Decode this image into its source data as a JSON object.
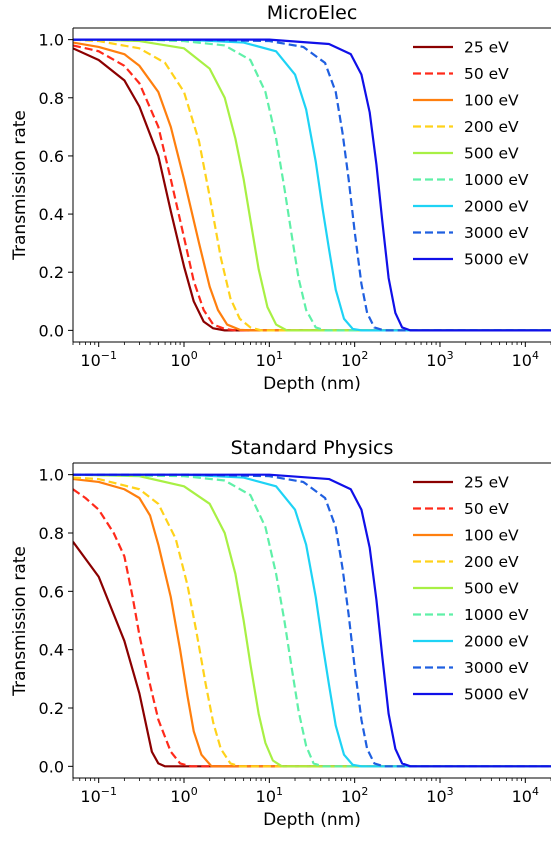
{
  "chart_data": [
    {
      "type": "line",
      "title": "MicroElec",
      "xlabel": "Depth (nm)",
      "ylabel": "Transmission rate",
      "x_scale": "log",
      "xlim": [
        0.05,
        20000
      ],
      "ylim": [
        -0.04,
        1.04
      ],
      "x_ticks": [
        {
          "value": 0.1,
          "base": "10",
          "exp": "−1"
        },
        {
          "value": 1,
          "base": "10",
          "exp": "0"
        },
        {
          "value": 10,
          "base": "10",
          "exp": "1"
        },
        {
          "value": 100,
          "base": "10",
          "exp": "2"
        },
        {
          "value": 1000,
          "base": "10",
          "exp": "3"
        },
        {
          "value": 10000,
          "base": "10",
          "exp": "4"
        }
      ],
      "y_ticks": [
        {
          "value": 0.0,
          "label": "0.0"
        },
        {
          "value": 0.2,
          "label": "0.2"
        },
        {
          "value": 0.4,
          "label": "0.4"
        },
        {
          "value": 0.6,
          "label": "0.6"
        },
        {
          "value": 0.8,
          "label": "0.8"
        },
        {
          "value": 1.0,
          "label": "1.0"
        }
      ],
      "grid": false,
      "legend_position": "top-right",
      "series": [
        {
          "name": "25 eV",
          "color": "#8b0000",
          "dashed": false,
          "x": [
            0.05,
            0.1,
            0.2,
            0.3,
            0.5,
            0.7,
            1,
            1.3,
            1.7,
            2.2,
            3,
            5,
            20000
          ],
          "y": [
            0.97,
            0.93,
            0.86,
            0.77,
            0.6,
            0.41,
            0.22,
            0.1,
            0.03,
            0.007,
            0.0,
            0.0,
            0.0
          ]
        },
        {
          "name": "50 eV",
          "color": "#ff2a1a",
          "dashed": true,
          "x": [
            0.05,
            0.1,
            0.2,
            0.3,
            0.5,
            0.7,
            1,
            1.3,
            1.7,
            2.2,
            3,
            4,
            5,
            20000
          ],
          "y": [
            0.98,
            0.96,
            0.91,
            0.85,
            0.7,
            0.52,
            0.32,
            0.17,
            0.07,
            0.02,
            0.005,
            0.0,
            0.0,
            0.0
          ]
        },
        {
          "name": "100 eV",
          "color": "#ff7f0e",
          "dashed": false,
          "x": [
            0.05,
            0.1,
            0.2,
            0.3,
            0.5,
            0.7,
            1,
            1.5,
            2,
            2.5,
            3.2,
            4.5,
            6,
            20000
          ],
          "y": [
            0.99,
            0.975,
            0.95,
            0.91,
            0.82,
            0.7,
            0.52,
            0.3,
            0.15,
            0.07,
            0.02,
            0.002,
            0.0,
            0.0
          ]
        },
        {
          "name": "200 eV",
          "color": "#ffd21a",
          "dashed": true,
          "x": [
            0.05,
            0.1,
            0.3,
            0.6,
            1,
            1.5,
            2,
            2.7,
            3.5,
            4.5,
            6,
            8,
            20000
          ],
          "y": [
            1.0,
            0.995,
            0.97,
            0.92,
            0.82,
            0.65,
            0.46,
            0.25,
            0.11,
            0.04,
            0.01,
            0.0,
            0.0
          ]
        },
        {
          "name": "500 eV",
          "color": "#a8f044",
          "dashed": false,
          "x": [
            0.05,
            0.1,
            0.3,
            1,
            2,
            3,
            4,
            5,
            6,
            7.5,
            9.5,
            12,
            16,
            20000
          ],
          "y": [
            1.0,
            1.0,
            0.995,
            0.97,
            0.9,
            0.8,
            0.66,
            0.52,
            0.38,
            0.21,
            0.08,
            0.02,
            0.0,
            0.0
          ]
        },
        {
          "name": "1000 eV",
          "color": "#5ff0a8",
          "dashed": true,
          "x": [
            0.05,
            0.3,
            1,
            3,
            6,
            9,
            12,
            15,
            18,
            22,
            27,
            35,
            45,
            20000
          ],
          "y": [
            1.0,
            1.0,
            0.995,
            0.98,
            0.93,
            0.82,
            0.66,
            0.49,
            0.34,
            0.18,
            0.07,
            0.01,
            0.0,
            0.0
          ]
        },
        {
          "name": "2000 eV",
          "color": "#1ed3f5",
          "dashed": false,
          "x": [
            0.05,
            1,
            5,
            12,
            20,
            27,
            35,
            42,
            50,
            60,
            75,
            95,
            120,
            20000
          ],
          "y": [
            1.0,
            1.0,
            0.99,
            0.96,
            0.88,
            0.76,
            0.58,
            0.42,
            0.28,
            0.14,
            0.04,
            0.005,
            0.0,
            0.0
          ]
        },
        {
          "name": "3000 eV",
          "color": "#1f5fe0",
          "dashed": true,
          "x": [
            0.05,
            1,
            10,
            25,
            45,
            60,
            72,
            85,
            100,
            120,
            140,
            170,
            220,
            20000
          ],
          "y": [
            1.0,
            1.0,
            0.995,
            0.975,
            0.92,
            0.82,
            0.68,
            0.52,
            0.34,
            0.16,
            0.06,
            0.01,
            0.0,
            0.0
          ]
        },
        {
          "name": "5000 eV",
          "color": "#1010e8",
          "dashed": false,
          "x": [
            0.05,
            1,
            10,
            50,
            90,
            120,
            150,
            180,
            210,
            250,
            300,
            360,
            450,
            20000
          ],
          "y": [
            1.0,
            1.0,
            1.0,
            0.985,
            0.95,
            0.88,
            0.75,
            0.57,
            0.38,
            0.18,
            0.06,
            0.01,
            0.0,
            0.0
          ]
        }
      ]
    },
    {
      "type": "line",
      "title": "Standard Physics",
      "xlabel": "Depth (nm)",
      "ylabel": "Transmission rate",
      "x_scale": "log",
      "xlim": [
        0.05,
        20000
      ],
      "ylim": [
        -0.04,
        1.04
      ],
      "x_ticks": [
        {
          "value": 0.1,
          "base": "10",
          "exp": "−1"
        },
        {
          "value": 1,
          "base": "10",
          "exp": "0"
        },
        {
          "value": 10,
          "base": "10",
          "exp": "1"
        },
        {
          "value": 100,
          "base": "10",
          "exp": "2"
        },
        {
          "value": 1000,
          "base": "10",
          "exp": "3"
        },
        {
          "value": 10000,
          "base": "10",
          "exp": "4"
        }
      ],
      "y_ticks": [
        {
          "value": 0.0,
          "label": "0.0"
        },
        {
          "value": 0.2,
          "label": "0.2"
        },
        {
          "value": 0.4,
          "label": "0.4"
        },
        {
          "value": 0.6,
          "label": "0.6"
        },
        {
          "value": 0.8,
          "label": "0.8"
        },
        {
          "value": 1.0,
          "label": "1.0"
        }
      ],
      "grid": false,
      "legend_position": "top-right",
      "series": [
        {
          "name": "25 eV",
          "color": "#8b0000",
          "dashed": false,
          "x": [
            0.05,
            0.1,
            0.2,
            0.3,
            0.42,
            0.5,
            0.6,
            20000
          ],
          "y": [
            0.77,
            0.65,
            0.43,
            0.25,
            0.05,
            0.01,
            0.0,
            0.0
          ]
        },
        {
          "name": "50 eV",
          "color": "#ff2a1a",
          "dashed": true,
          "x": [
            0.05,
            0.07,
            0.1,
            0.15,
            0.2,
            0.25,
            0.3,
            0.4,
            0.5,
            0.7,
            0.9,
            1.2,
            20000
          ],
          "y": [
            0.95,
            0.92,
            0.88,
            0.8,
            0.72,
            0.58,
            0.45,
            0.28,
            0.16,
            0.05,
            0.01,
            0.0,
            0.0
          ]
        },
        {
          "name": "100 eV",
          "color": "#ff7f0e",
          "dashed": false,
          "x": [
            0.05,
            0.1,
            0.2,
            0.3,
            0.4,
            0.5,
            0.7,
            0.9,
            1.1,
            1.3,
            1.6,
            2.1,
            20000
          ],
          "y": [
            0.985,
            0.975,
            0.95,
            0.92,
            0.86,
            0.76,
            0.58,
            0.4,
            0.24,
            0.12,
            0.04,
            0.0,
            0.0
          ]
        },
        {
          "name": "200 eV",
          "color": "#ffd21a",
          "dashed": true,
          "x": [
            0.05,
            0.1,
            0.3,
            0.5,
            0.8,
            1.1,
            1.4,
            1.8,
            2.2,
            2.7,
            3.5,
            4.5,
            20000
          ],
          "y": [
            0.99,
            0.985,
            0.95,
            0.9,
            0.78,
            0.62,
            0.46,
            0.28,
            0.15,
            0.06,
            0.01,
            0.0,
            0.0
          ]
        },
        {
          "name": "500 eV",
          "color": "#a8f044",
          "dashed": false,
          "x": [
            0.05,
            0.3,
            1,
            2,
            3,
            4,
            5,
            6,
            7.5,
            9,
            11,
            14,
            20000
          ],
          "y": [
            1.0,
            0.995,
            0.96,
            0.9,
            0.8,
            0.66,
            0.5,
            0.35,
            0.18,
            0.08,
            0.02,
            0.0,
            0.0
          ]
        },
        {
          "name": "1000 eV",
          "color": "#5ff0a8",
          "dashed": true,
          "x": [
            0.05,
            1,
            3,
            6,
            9,
            12,
            15,
            18,
            22,
            27,
            33,
            42,
            20000
          ],
          "y": [
            1.0,
            0.995,
            0.98,
            0.93,
            0.82,
            0.66,
            0.5,
            0.35,
            0.19,
            0.07,
            0.01,
            0.0,
            0.0
          ]
        },
        {
          "name": "2000 eV",
          "color": "#1ed3f5",
          "dashed": false,
          "x": [
            0.05,
            1,
            5,
            12,
            20,
            27,
            35,
            42,
            50,
            60,
            75,
            95,
            120,
            20000
          ],
          "y": [
            1.0,
            1.0,
            0.99,
            0.96,
            0.88,
            0.76,
            0.58,
            0.42,
            0.28,
            0.14,
            0.04,
            0.005,
            0.0,
            0.0
          ]
        },
        {
          "name": "3000 eV",
          "color": "#1f5fe0",
          "dashed": true,
          "x": [
            0.05,
            1,
            10,
            25,
            45,
            60,
            72,
            85,
            100,
            120,
            140,
            170,
            220,
            20000
          ],
          "y": [
            1.0,
            1.0,
            0.995,
            0.975,
            0.92,
            0.82,
            0.68,
            0.52,
            0.34,
            0.16,
            0.06,
            0.01,
            0.0,
            0.0
          ]
        },
        {
          "name": "5000 eV",
          "color": "#1010e8",
          "dashed": false,
          "x": [
            0.05,
            1,
            10,
            50,
            90,
            120,
            150,
            180,
            210,
            250,
            300,
            360,
            450,
            20000
          ],
          "y": [
            1.0,
            1.0,
            1.0,
            0.985,
            0.95,
            0.88,
            0.75,
            0.57,
            0.38,
            0.18,
            0.06,
            0.01,
            0.0,
            0.0
          ]
        }
      ]
    }
  ]
}
